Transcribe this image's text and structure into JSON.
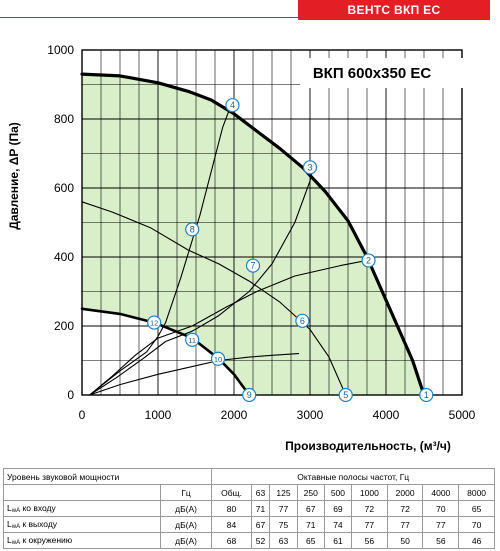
{
  "header": {
    "brand": "ВЕНТС ВКП ЕС"
  },
  "chart_data": {
    "type": "line",
    "model_label": "ВКП  600x350 ЕС",
    "xlabel": "Производительность, (м³/ч)",
    "ylabel": "Давление, ΔP (Па)",
    "xlim": [
      0,
      5000
    ],
    "ylim": [
      0,
      1000
    ],
    "xticks": [
      0,
      1000,
      2000,
      3000,
      4000,
      5000
    ],
    "yticks": [
      0,
      200,
      400,
      600,
      800,
      1000
    ],
    "grid": true,
    "shaded_region_color": "#d9efc9",
    "curve_color": "#000000",
    "series": [
      {
        "points": [
          [
            0,
            930
          ],
          [
            500,
            925
          ],
          [
            1000,
            905
          ],
          [
            1400,
            880
          ],
          [
            1700,
            855
          ],
          [
            2000,
            815
          ],
          [
            2300,
            765
          ],
          [
            2600,
            715
          ],
          [
            2900,
            660
          ],
          [
            3200,
            590
          ],
          [
            3500,
            505
          ],
          [
            3750,
            400
          ],
          [
            3950,
            300
          ],
          [
            4150,
            200
          ],
          [
            4350,
            100
          ],
          [
            4500,
            0
          ]
        ]
      },
      {
        "points": [
          [
            0,
            250
          ],
          [
            500,
            235
          ],
          [
            950,
            210
          ],
          [
            1450,
            165
          ],
          [
            1800,
            105
          ],
          [
            2000,
            60
          ],
          [
            2200,
            0
          ]
        ]
      },
      {
        "points": [
          [
            0,
            560
          ],
          [
            400,
            530
          ],
          [
            900,
            485
          ],
          [
            1400,
            420
          ],
          [
            1800,
            380
          ],
          [
            2200,
            330
          ],
          [
            2600,
            270
          ],
          [
            3000,
            190
          ],
          [
            3250,
            110
          ],
          [
            3470,
            0
          ]
        ]
      },
      {
        "points": [
          [
            100,
            0
          ],
          [
            400,
            55
          ],
          [
            700,
            115
          ],
          [
            1000,
            165
          ],
          [
            1450,
            200
          ],
          [
            1900,
            255
          ],
          [
            2300,
            300
          ],
          [
            2800,
            345
          ],
          [
            3400,
            375
          ],
          [
            3750,
            390
          ]
        ]
      },
      {
        "points": [
          [
            100,
            0
          ],
          [
            450,
            50
          ],
          [
            800,
            105
          ],
          [
            1100,
            155
          ],
          [
            1450,
            185
          ],
          [
            1800,
            230
          ],
          [
            2200,
            300
          ],
          [
            2500,
            380
          ],
          [
            2800,
            500
          ],
          [
            3000,
            620
          ],
          [
            3050,
            665
          ]
        ]
      },
      {
        "points": [
          [
            100,
            0
          ],
          [
            500,
            70
          ],
          [
            850,
            125
          ],
          [
            1000,
            170
          ],
          [
            1100,
            210
          ],
          [
            1300,
            340
          ],
          [
            1550,
            520
          ],
          [
            1750,
            690
          ],
          [
            1850,
            775
          ],
          [
            1960,
            840
          ]
        ]
      },
      {
        "points": [
          [
            100,
            0
          ],
          [
            500,
            30
          ],
          [
            1000,
            60
          ],
          [
            1500,
            85
          ],
          [
            1800,
            100
          ],
          [
            2200,
            110
          ],
          [
            2500,
            115
          ],
          [
            2850,
            120
          ]
        ]
      }
    ],
    "markers": [
      {
        "label": "1",
        "x": 4530,
        "y": 0
      },
      {
        "label": "2",
        "x": 3770,
        "y": 390
      },
      {
        "label": "3",
        "x": 3000,
        "y": 660
      },
      {
        "label": "4",
        "x": 1980,
        "y": 840
      },
      {
        "label": "5",
        "x": 3470,
        "y": 0
      },
      {
        "label": "6",
        "x": 2900,
        "y": 215
      },
      {
        "label": "7",
        "x": 2250,
        "y": 375
      },
      {
        "label": "8",
        "x": 1450,
        "y": 480
      },
      {
        "label": "9",
        "x": 2200,
        "y": 0
      },
      {
        "label": "10",
        "x": 1790,
        "y": 105
      },
      {
        "label": "11",
        "x": 1450,
        "y": 160
      },
      {
        "label": "12",
        "x": 950,
        "y": 210
      }
    ]
  },
  "table": {
    "title": "Уровень звуковой мощности",
    "bands_title": "Октавные полосы частот, Гц",
    "unit_hz": "Гц",
    "headers": [
      "Общ.",
      "63",
      "125",
      "250",
      "500",
      "1000",
      "2000",
      "4000",
      "8000"
    ],
    "rows": [
      {
        "label_pre": "L",
        "label_sub": "wA",
        "label_post": " ко входу",
        "unit": "дБ(A)",
        "values": [
          "80",
          "71",
          "77",
          "67",
          "69",
          "72",
          "72",
          "70",
          "65"
        ]
      },
      {
        "label_pre": "L",
        "label_sub": "wA",
        "label_post": " к выходу",
        "unit": "дБ(A)",
        "values": [
          "84",
          "67",
          "75",
          "71",
          "74",
          "77",
          "77",
          "77",
          "70"
        ]
      },
      {
        "label_pre": "L",
        "label_sub": "wA",
        "label_post": " к окружению",
        "unit": "дБ(A)",
        "values": [
          "68",
          "52",
          "63",
          "65",
          "61",
          "56",
          "50",
          "56",
          "46"
        ]
      }
    ]
  }
}
